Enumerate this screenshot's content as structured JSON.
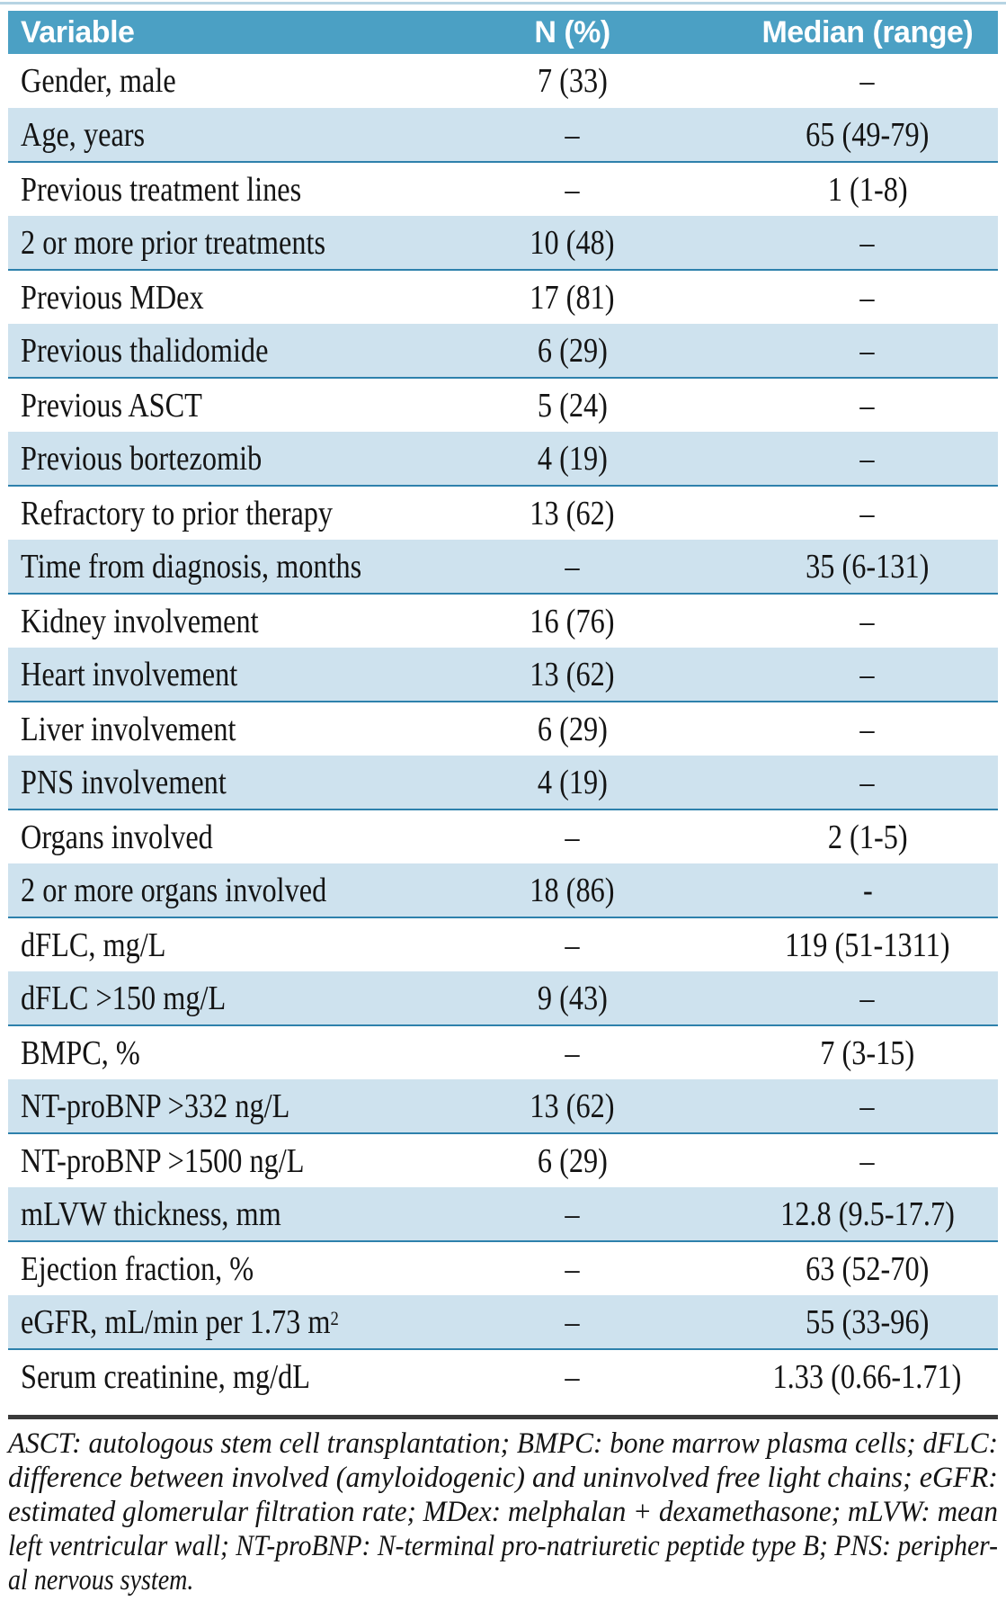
{
  "colors": {
    "header_bg": "#4BA0C4",
    "shaded_row_bg": "#CEE2EE",
    "shaded_row_border": "#2E81AC",
    "header_text": "#FFFFFF",
    "body_text": "#141414",
    "footnote_rule": "#3A3A3A"
  },
  "table": {
    "columns": [
      "Variable",
      "N (%)",
      "Median (range)"
    ],
    "rows": [
      {
        "variable": "Gender, male",
        "n": "7 (33)",
        "median": "–"
      },
      {
        "variable": "Age, years",
        "n": "–",
        "median": "65 (49-79)"
      },
      {
        "variable": "Previous treatment lines",
        "n": "–",
        "median": "1 (1-8)"
      },
      {
        "variable": "2 or more prior treatments",
        "n": "10 (48)",
        "median": "–"
      },
      {
        "variable": "Previous MDex",
        "n": "17 (81)",
        "median": "–"
      },
      {
        "variable": "Previous thalidomide",
        "n": "6 (29)",
        "median": "–"
      },
      {
        "variable": "Previous ASCT",
        "n": "5 (24)",
        "median": "–"
      },
      {
        "variable": "Previous bortezomib",
        "n": "4 (19)",
        "median": "–"
      },
      {
        "variable": "Refractory to prior therapy",
        "n": "13 (62)",
        "median": "–"
      },
      {
        "variable": "Time from diagnosis, months",
        "n": "–",
        "median": "35 (6-131)"
      },
      {
        "variable": "Kidney involvement",
        "n": "16 (76)",
        "median": "–"
      },
      {
        "variable": "Heart involvement",
        "n": "13 (62)",
        "median": "–"
      },
      {
        "variable": "Liver involvement",
        "n": "6 (29)",
        "median": "–"
      },
      {
        "variable": "PNS involvement",
        "n": "4 (19)",
        "median": "–"
      },
      {
        "variable": "Organs involved",
        "n": "–",
        "median": "2 (1-5)"
      },
      {
        "variable": "2 or more organs involved",
        "n": "18 (86)",
        "median": "-"
      },
      {
        "variable": "dFLC, mg/L",
        "n": "–",
        "median": "119 (51-1311)"
      },
      {
        "variable": "dFLC >150 mg/L",
        "n": "9 (43)",
        "median": "–"
      },
      {
        "variable": "BMPC, %",
        "n": "–",
        "median": "7 (3-15)"
      },
      {
        "variable": "NT-proBNP >332 ng/L",
        "n": "13 (62)",
        "median": "–"
      },
      {
        "variable": "NT-proBNP >1500 ng/L",
        "n": "6 (29)",
        "median": "–"
      },
      {
        "variable": "mLVW thickness, mm",
        "n": "–",
        "median": "12.8 (9.5-17.7)"
      },
      {
        "variable": "Ejection fraction, %",
        "n": "–",
        "median": "63 (52-70)"
      },
      {
        "variable": "eGFR, mL/min per 1.73 m",
        "variable_sup": "2",
        "n": "–",
        "median": "55 (33-96)"
      },
      {
        "variable": "Serum creatinine, mg/dL",
        "n": "–",
        "median": "1.33 (0.66-1.71)"
      }
    ]
  },
  "footnote": {
    "lines": [
      "ASCT: autologous stem cell transplantation; BMPC: bone marrow plasma cells; dFLC:",
      "difference between involved (amyloidogenic) and uninvolved free light chains; eGFR:",
      "estimated glomerular filtration rate; MDex: melphalan + dexamethasone; mLVW: mean",
      "left ventricular wall; NT-proBNP: N-terminal pro-natriuretic peptide type B; PNS: peripher-",
      "al nervous system."
    ]
  }
}
